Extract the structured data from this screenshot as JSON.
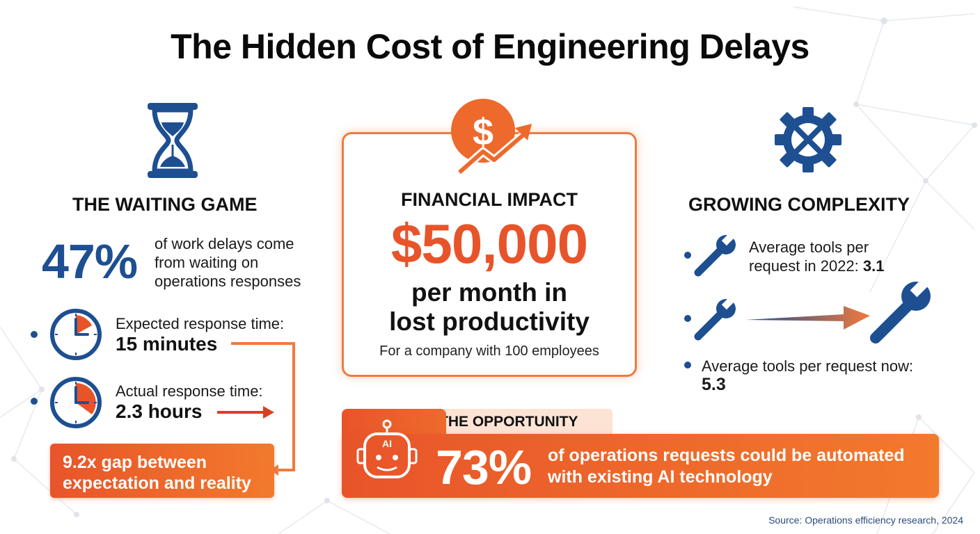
{
  "title": "The Hidden Cost of Engineering Delays",
  "colors": {
    "blue": "#1d4f91",
    "orange": "#e8542a",
    "orange_light": "#f27a2c"
  },
  "waiting": {
    "heading": "THE WAITING GAME",
    "icon": "hourglass-icon",
    "stat_value": "47%",
    "stat_text_lines": [
      "of work delays come",
      "from waiting on",
      "operations responses"
    ],
    "expected_label": "Expected response time:",
    "expected_value": "15 minutes",
    "actual_label": "Actual response time:",
    "actual_value": "2.3 hours",
    "gap_lines": [
      "9.2x gap between",
      "expectation and reality"
    ]
  },
  "financial": {
    "icon": "dollar-growth-icon",
    "heading": "FINANCIAL IMPACT",
    "amount": "$50,000",
    "lines": [
      "per month in",
      "lost productivity"
    ],
    "note": "For a company with 100 employees"
  },
  "complexity": {
    "heading": "GROWING COMPLEXITY",
    "icon": "gear-wrench-icon",
    "tools_2022_label_lines": [
      "Average tools per",
      "request in 2022: "
    ],
    "tools_2022_value": "3.1",
    "tools_now_label": "Average tools per request now:",
    "tools_now_value": "5.3"
  },
  "opportunity": {
    "tab_label": "THE OPPORTUNITY",
    "icon": "ai-robot-icon",
    "icon_label": "AI",
    "stat_value": "73%",
    "text_lines": [
      "of operations requests could be automated",
      "with existing AI technology"
    ]
  },
  "source": "Source: Operations efficiency research, 2024"
}
